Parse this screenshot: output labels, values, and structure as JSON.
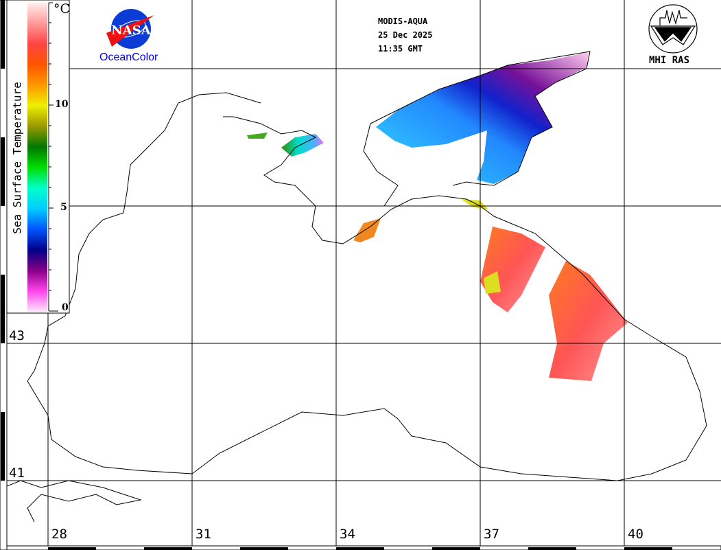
{
  "header": {
    "satellite": "MODIS-AQUA",
    "date": "25 Dec 2025",
    "time": "11:35 GMT"
  },
  "logos": {
    "left": {
      "text": "NASA",
      "caption": "OceanColor",
      "color": "#0000ee"
    },
    "right": {
      "caption": "MHI RAS"
    }
  },
  "legend": {
    "title": "Sea Surface Temperature",
    "unit": "°C",
    "ticks": [
      "10",
      "5",
      "0"
    ],
    "range": [
      0,
      15
    ],
    "colors": [
      "#ffe6fa",
      "#ff44ee",
      "#880088",
      "#000088",
      "#0055ff",
      "#00ccff",
      "#00ffcc",
      "#00dd00",
      "#007700",
      "#999900",
      "#eeee00",
      "#ff9900",
      "#ff5500",
      "#ff4444",
      "#ff9999",
      "#ffeeee"
    ]
  },
  "map": {
    "latitude_labels": [
      "43",
      "41"
    ],
    "longitude_labels": [
      "28",
      "31",
      "34",
      "37",
      "40"
    ]
  }
}
